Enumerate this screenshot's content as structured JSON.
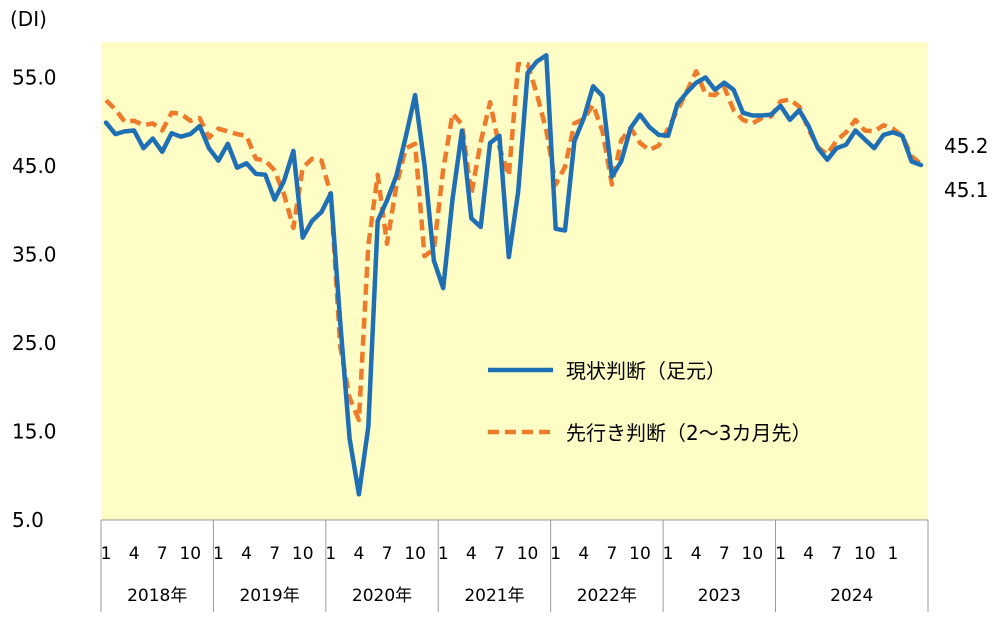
{
  "chart_data": {
    "type": "line",
    "y_unit": "(DI)",
    "yticks": [
      5.0,
      15.0,
      25.0,
      35.0,
      45.0,
      55.0
    ],
    "ylim": [
      5.0,
      59.0
    ],
    "grid": false,
    "legend_position": "center-right",
    "month_tick_labels": [
      "1",
      "4",
      "7",
      "10",
      "1",
      "4",
      "7",
      "10",
      "1",
      "4",
      "7",
      "10",
      "1",
      "4",
      "7",
      "10",
      "1",
      "4",
      "7",
      "10",
      "1",
      "4",
      "7",
      "10",
      "1",
      "4",
      "7",
      "10",
      "1"
    ],
    "year_labels": [
      "2018年",
      "2019年",
      "2020年",
      "2021年",
      "2022年",
      "2023",
      "2024"
    ],
    "series": [
      {
        "name": "現状判断（足元）",
        "color": "#1f6fb5",
        "style": "solid",
        "end_label": "45.1",
        "values": [
          49.9,
          48.6,
          48.9,
          49.0,
          47.0,
          48.1,
          46.6,
          48.7,
          48.3,
          48.6,
          49.5,
          47.0,
          45.6,
          47.5,
          44.8,
          45.3,
          44.1,
          44.0,
          41.2,
          43.3,
          46.7,
          36.9,
          38.8,
          39.8,
          41.9,
          27.4,
          14.2,
          7.9,
          15.5,
          38.8,
          41.1,
          43.9,
          48.3,
          53.0,
          45.1,
          34.3,
          31.2,
          41.3,
          49.0,
          39.1,
          38.1,
          47.6,
          48.4,
          34.7,
          42.1,
          55.5,
          56.8,
          57.5,
          37.9,
          37.7,
          47.8,
          50.4,
          54.0,
          52.9,
          43.8,
          45.5,
          49.3,
          50.8,
          49.4,
          48.5,
          48.4,
          52.0,
          53.3,
          54.4,
          55.0,
          53.6,
          54.4,
          53.6,
          51.0,
          50.7,
          50.7,
          50.8,
          51.8,
          50.2,
          51.3,
          49.5,
          47.0,
          45.7,
          47.0,
          47.4,
          49.0,
          48.0,
          47.0,
          48.5,
          48.8,
          48.4,
          45.5,
          45.1
        ]
      },
      {
        "name": "先行き判断（2～3カ月先）",
        "color": "#ee7a2b",
        "style": "dashed",
        "end_label": "45.2",
        "values": [
          52.4,
          51.4,
          50.0,
          50.1,
          49.6,
          49.8,
          49.0,
          51.0,
          50.9,
          50.1,
          50.4,
          48.2,
          49.2,
          48.9,
          48.6,
          48.4,
          45.8,
          45.6,
          44.5,
          41.8,
          38.0,
          44.8,
          45.8,
          45.6,
          41.8,
          24.6,
          18.8,
          16.3,
          36.0,
          44.0,
          36.2,
          42.8,
          47.0,
          47.5,
          34.8,
          35.6,
          44.6,
          50.9,
          49.7,
          41.8,
          47.7,
          52.2,
          47.1,
          43.9,
          56.5,
          56.5,
          53.1,
          49.0,
          42.9,
          44.9,
          49.8,
          50.3,
          51.9,
          48.9,
          42.9,
          47.9,
          49.3,
          47.6,
          46.8,
          47.3,
          49.2,
          51.3,
          53.4,
          55.7,
          53.1,
          53.0,
          53.9,
          51.3,
          50.2,
          49.8,
          50.4,
          50.6,
          52.3,
          52.5,
          51.7,
          49.1,
          47.1,
          46.3,
          47.9,
          48.8,
          50.2,
          49.0,
          48.9,
          49.6,
          49.2,
          48.4,
          46.1,
          45.2
        ]
      }
    ]
  }
}
